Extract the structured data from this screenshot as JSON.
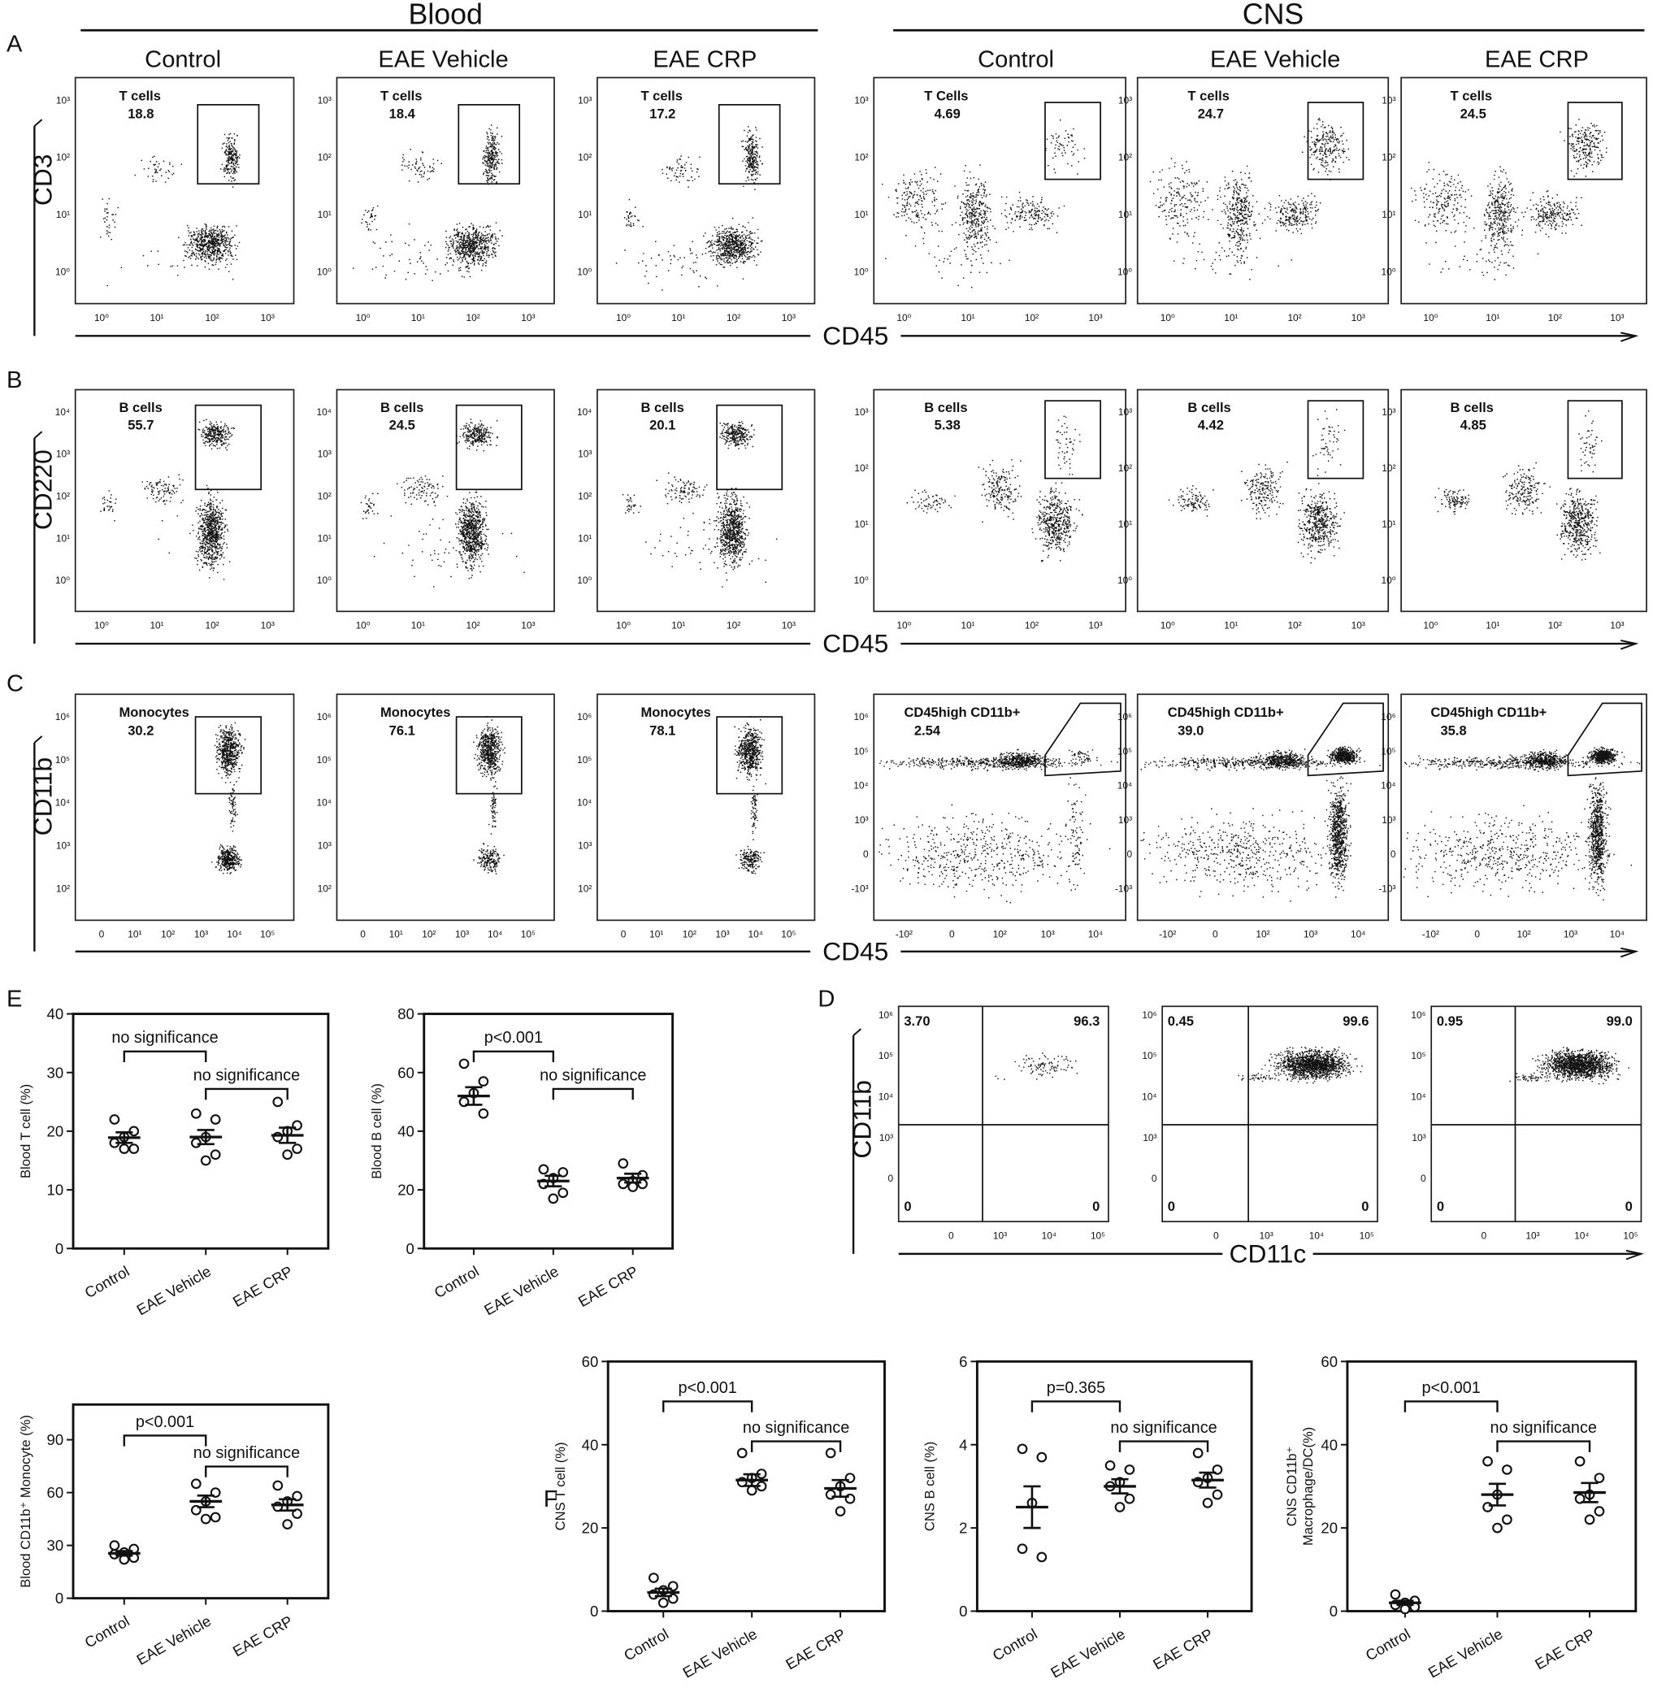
{
  "panel_labels": [
    "A",
    "B",
    "C",
    "D",
    "E",
    "F"
  ],
  "flow_cytometry": {
    "groups": [
      "Blood",
      "CNS"
    ],
    "columns": [
      "Control",
      "EAE  Vehicle",
      "EAE CRP",
      "Control",
      "EAE  Vehicle",
      "EAE CRP"
    ],
    "rows": [
      {
        "y_label": "CD3",
        "x_label": "CD45",
        "blood_xticks": [
          "10⁰",
          "10¹",
          "10²",
          "10³"
        ],
        "blood_yticks": [
          "10⁰",
          "10¹",
          "10²",
          "10³"
        ],
        "cns_xticks": [
          "10⁰",
          "10¹",
          "10²",
          "10³"
        ],
        "cns_yticks": [
          "10⁰",
          "10¹",
          "10²",
          "10³"
        ],
        "gates": [
          {
            "name": "T cells",
            "value": "18.8"
          },
          {
            "name": "T cells",
            "value": "18.4"
          },
          {
            "name": "T cells",
            "value": "17.2"
          },
          {
            "name": "T Cells",
            "value": "4.69"
          },
          {
            "name": "T cells",
            "value": "24.7"
          },
          {
            "name": "T cells",
            "value": "24.5"
          }
        ]
      },
      {
        "y_label": "CD220",
        "x_label": "CD45",
        "blood_xticks": [
          "10⁰",
          "10¹",
          "10²",
          "10³"
        ],
        "blood_yticks": [
          "10⁰",
          "10¹",
          "10²",
          "10³",
          "10⁴"
        ],
        "cns_xticks": [
          "10⁰",
          "10¹",
          "10²",
          "10³"
        ],
        "cns_yticks": [
          "10⁰",
          "10¹",
          "10²",
          "10³"
        ],
        "gates": [
          {
            "name": "B cells",
            "value": "55.7"
          },
          {
            "name": "B cells",
            "value": "24.5"
          },
          {
            "name": "B cells",
            "value": "20.1"
          },
          {
            "name": "B cells",
            "value": "5.38"
          },
          {
            "name": "B cells",
            "value": "4.42"
          },
          {
            "name": "B cells",
            "value": "4.85"
          }
        ]
      },
      {
        "y_label": "CD11b",
        "x_label": "CD45",
        "blood_xticks": [
          "0",
          "10¹",
          "10²",
          "10³",
          "10⁴",
          "10⁵"
        ],
        "blood_yticks": [
          "10²",
          "10³",
          "10⁴",
          "10⁵",
          "10⁶"
        ],
        "cns_xticks": [
          "-10²",
          "0",
          "10²",
          "10³",
          "10⁴"
        ],
        "cns_yticks": [
          "-10³",
          "0",
          "10³",
          "10⁴",
          "10⁵",
          "10⁶"
        ],
        "gates": [
          {
            "name": "Monocytes",
            "value": "30.2"
          },
          {
            "name": "Monocytes",
            "value": "76.1"
          },
          {
            "name": "Monocytes",
            "value": "78.1"
          },
          {
            "name": "CD45high CD11b+",
            "value": "2.54"
          },
          {
            "name": "CD45high CD11b+",
            "value": "39.0"
          },
          {
            "name": "CD45high CD11b+",
            "value": "35.8"
          }
        ]
      }
    ]
  },
  "panel_d": {
    "y_label": "CD11b",
    "x_label": "CD11c",
    "xticks": [
      "0",
      "10³",
      "10⁴",
      "10⁵"
    ],
    "yticks": [
      "0",
      "10³",
      "10⁴",
      "10⁵",
      "10⁶"
    ],
    "quadrants": [
      [
        "3.70",
        "96.3",
        "0",
        "0"
      ],
      [
        "0.45",
        "99.6",
        "0",
        "0"
      ],
      [
        "0.95",
        "99.0",
        "0",
        "0"
      ]
    ]
  },
  "chart_data": [
    {
      "type": "dotplot",
      "y_label": [
        "Blood T cell (%)"
      ],
      "categories": [
        "Control",
        "EAE Vehicle",
        "EAE CRP"
      ],
      "points": [
        [
          22,
          20,
          19,
          18,
          17,
          17
        ],
        [
          23,
          22,
          19,
          18,
          16,
          15
        ],
        [
          25,
          21,
          20,
          19,
          17,
          16
        ]
      ],
      "means": [
        18.9,
        19,
        19.3
      ],
      "sems": [
        0.9,
        1.2,
        1.3
      ],
      "ylim": [
        0,
        40
      ],
      "yticks": [
        0,
        10,
        20,
        30,
        40
      ],
      "brackets": [
        {
          "label": "no significance",
          "between": [
            "Control",
            "EAE Vehicle"
          ]
        },
        {
          "label": "no significance",
          "between": [
            "EAE Vehicle",
            "EAE CRP"
          ]
        }
      ]
    },
    {
      "type": "dotplot",
      "y_label": [
        "Blood B cell (%)"
      ],
      "categories": [
        "Control",
        "EAE Vehicle",
        "EAE CRP"
      ],
      "points": [
        [
          63,
          57,
          53,
          50,
          46
        ],
        [
          27,
          26,
          24,
          22,
          19,
          17
        ],
        [
          29,
          25,
          23,
          22,
          22,
          21
        ]
      ],
      "means": [
        52,
        23,
        24
      ],
      "sems": [
        3,
        1.8,
        1.5
      ],
      "ylim": [
        0,
        80
      ],
      "yticks": [
        0,
        20,
        40,
        60,
        80
      ],
      "brackets": [
        {
          "label": "p<0.001",
          "between": [
            "Control",
            "EAE Vehicle"
          ]
        },
        {
          "label": "no significance",
          "between": [
            "EAE Vehicle",
            "EAE CRP"
          ]
        }
      ]
    },
    {
      "type": "dotplot",
      "y_label": [
        "Blood CD11b⁺ Monocyte (%)"
      ],
      "categories": [
        "Control",
        "EAE Vehicle",
        "EAE CRP"
      ],
      "points": [
        [
          30,
          28,
          26,
          25,
          23,
          22
        ],
        [
          65,
          60,
          55,
          50,
          46,
          45
        ],
        [
          64,
          58,
          55,
          52,
          48,
          42
        ]
      ],
      "means": [
        25.5,
        55,
        53
      ],
      "sems": [
        1.3,
        3.3,
        3.2
      ],
      "ylim": [
        0,
        110
      ],
      "yticks": [
        0,
        30,
        60,
        90
      ],
      "brackets": [
        {
          "label": "p<0.001",
          "between": [
            "Control",
            "EAE Vehicle"
          ]
        },
        {
          "label": "no significance",
          "between": [
            "EAE Vehicle",
            "EAE CRP"
          ]
        }
      ]
    },
    {
      "type": "dotplot",
      "y_label": [
        "CNS T cell (%)"
      ],
      "categories": [
        "Control",
        "EAE Vehicle",
        "EAE CRP"
      ],
      "points": [
        [
          8,
          6,
          5,
          4,
          3,
          2
        ],
        [
          38,
          33,
          32,
          31,
          30,
          29
        ],
        [
          38,
          32,
          30,
          28,
          27,
          24
        ]
      ],
      "means": [
        4.5,
        31.5,
        29.5
      ],
      "sems": [
        0.9,
        1.4,
        2
      ],
      "ylim": [
        0,
        60
      ],
      "yticks": [
        0,
        20,
        40,
        60
      ],
      "brackets": [
        {
          "label": "p<0.001",
          "between": [
            "Control",
            "EAE Vehicle"
          ]
        },
        {
          "label": "no significance",
          "between": [
            "EAE Vehicle",
            "EAE CRP"
          ]
        }
      ]
    },
    {
      "type": "dotplot",
      "y_label": [
        "CNS B cell (%)"
      ],
      "categories": [
        "Control",
        "EAE Vehicle",
        "EAE CRP"
      ],
      "points": [
        [
          3.9,
          3.7,
          2.6,
          1.5,
          1.3
        ],
        [
          3.5,
          3.4,
          3.1,
          3.0,
          2.7,
          2.5
        ],
        [
          3.8,
          3.4,
          3.2,
          3.1,
          2.8,
          2.6
        ]
      ],
      "means": [
        2.5,
        3,
        3.15
      ],
      "sems": [
        0.5,
        0.17,
        0.18
      ],
      "ylim": [
        0,
        6
      ],
      "yticks": [
        0,
        2,
        4,
        6
      ],
      "brackets": [
        {
          "label": "p=0.365",
          "between": [
            "Control",
            "EAE Vehicle"
          ]
        },
        {
          "label": "no significance",
          "between": [
            "EAE Vehicle",
            "EAE CRP"
          ]
        }
      ]
    },
    {
      "type": "dotplot",
      "y_label": [
        "CNS CD11b⁺",
        "Macrophage/DC(%)"
      ],
      "categories": [
        "Control",
        "EAE Vehicle",
        "EAE CRP"
      ],
      "points": [
        [
          4,
          2.5,
          2,
          1.5,
          1,
          0.5
        ],
        [
          36,
          34,
          28,
          25,
          22,
          20
        ],
        [
          36,
          32,
          28,
          27,
          24,
          22
        ]
      ],
      "means": [
        2,
        28,
        28.5
      ],
      "sems": [
        0.5,
        2.6,
        2.3
      ],
      "ylim": [
        0,
        60
      ],
      "yticks": [
        0,
        20,
        40,
        60
      ],
      "brackets": [
        {
          "label": "p<0.001",
          "between": [
            "Control",
            "EAE Vehicle"
          ]
        },
        {
          "label": "no significance",
          "between": [
            "EAE Vehicle",
            "EAE CRP"
          ]
        }
      ]
    }
  ]
}
